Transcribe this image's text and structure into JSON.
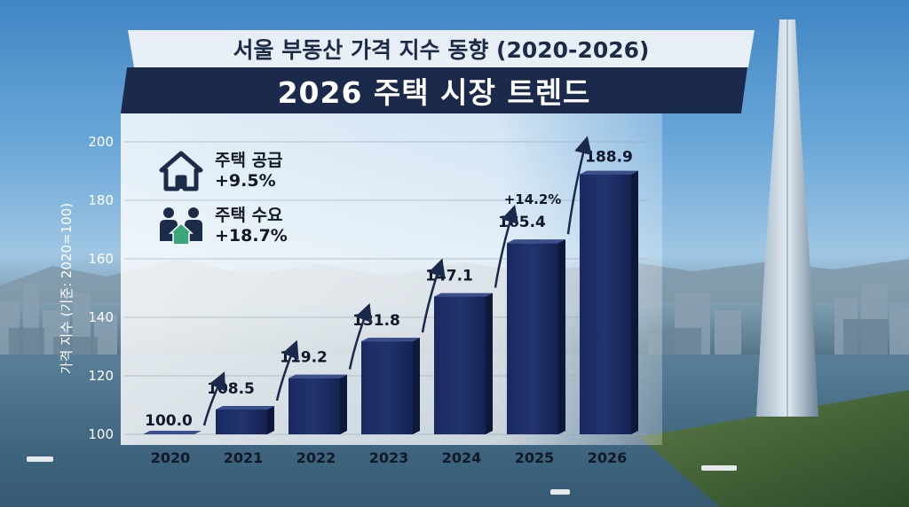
{
  "title": "서울 부동산 가격 지수 동향 (2020-2026)",
  "subtitle": "2026 주택 시장 트렌드",
  "info": {
    "supply_label": "주택 공급",
    "supply_change": "+9.5%",
    "demand_label": "주택 수요",
    "demand_change": "+18.7%",
    "supply_icon": "house-icon",
    "demand_icon": "people-house-icon"
  },
  "colors": {
    "bar": "#1b2a5a",
    "title_bg": "#1b2a4b",
    "icon": "#1c2b48",
    "house_green": "#3aa67a"
  },
  "chart_data": {
    "type": "bar",
    "title": "서울 부동산 가격 지수 동향 (2020-2026)",
    "ylabel": "가격 지수 (기준: 2020=100)",
    "xlabel": "",
    "categories": [
      "2020",
      "2021",
      "2022",
      "2023",
      "2024",
      "2025",
      "2026"
    ],
    "values": [
      100.0,
      108.5,
      119.2,
      131.8,
      147.1,
      165.4,
      188.9
    ],
    "value_labels": [
      "100.0",
      "108.5",
      "119.2",
      "131.8",
      "147.1",
      "165.4",
      "188.9"
    ],
    "yticks": [
      100,
      120,
      140,
      160,
      180,
      200
    ],
    "ylim": [
      100,
      200
    ],
    "grid": true,
    "annotations": [
      {
        "text": "+14.2%",
        "between": [
          "2025",
          "2026"
        ]
      }
    ]
  }
}
